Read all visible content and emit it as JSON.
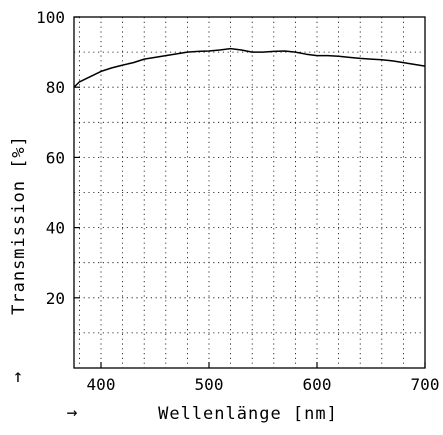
{
  "chart_data": {
    "type": "line",
    "xlabel": "Wellenlänge [nm]",
    "ylabel": "Transmission [%]",
    "xlim": [
      375,
      700
    ],
    "ylim": [
      0,
      100
    ],
    "xticks": [
      400,
      500,
      600,
      700
    ],
    "yticks": [
      20,
      40,
      60,
      80,
      100
    ],
    "xtick_labels": [
      "400",
      "500",
      "600",
      "700"
    ],
    "ytick_labels": [
      "20",
      "40",
      "60",
      "80",
      "100"
    ],
    "grid": true,
    "grid_style": "dotted",
    "x_arrow": "→",
    "y_arrow": "↑",
    "series": [
      {
        "color": "#000000",
        "x": [
          375,
          380,
          390,
          400,
          410,
          420,
          430,
          440,
          450,
          460,
          470,
          480,
          490,
          500,
          510,
          520,
          530,
          540,
          550,
          560,
          570,
          580,
          590,
          600,
          610,
          620,
          630,
          640,
          650,
          660,
          670,
          680,
          690,
          700
        ],
        "y": [
          80.0,
          81.5,
          83.0,
          84.5,
          85.5,
          86.3,
          87.0,
          88.0,
          88.5,
          89.0,
          89.5,
          90.0,
          90.2,
          90.3,
          90.6,
          91.0,
          90.6,
          90.0,
          90.0,
          90.2,
          90.3,
          90.0,
          89.4,
          89.0,
          89.0,
          88.8,
          88.5,
          88.2,
          88.0,
          87.8,
          87.5,
          87.0,
          86.5,
          86.0
        ]
      }
    ]
  }
}
